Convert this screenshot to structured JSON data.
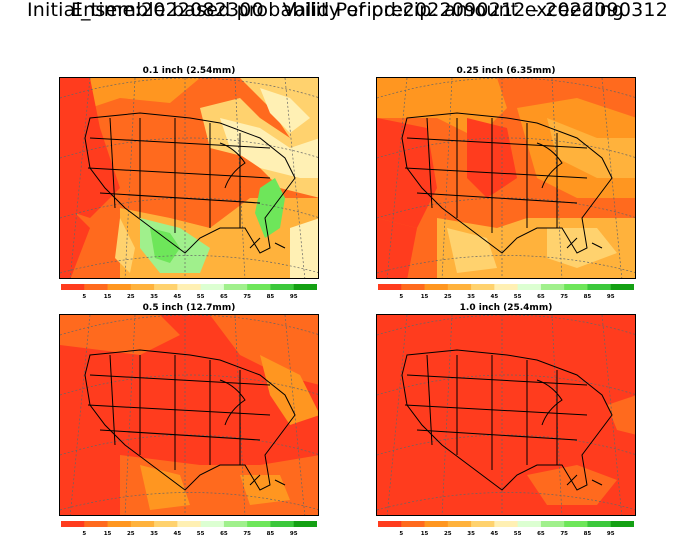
{
  "header": {
    "title_line1": "Initial_time:2022082300   Valid Period:2022090212 - 2022090312",
    "title_line2": "Ensemble based probability of precip. amount exceeding"
  },
  "colorbar": {
    "labels": [
      "5",
      "15",
      "25",
      "35",
      "45",
      "55",
      "65",
      "75",
      "85",
      "95"
    ],
    "colors": [
      "#ff3c1e",
      "#ff6a1e",
      "#ff9620",
      "#ffb23c",
      "#ffd26e",
      "#fff0b4",
      "#dcffd2",
      "#a0f08c",
      "#6ee65a",
      "#3cc83c",
      "#14a014"
    ]
  },
  "panels": [
    {
      "title": "0.1 inch (2.54mm)"
    },
    {
      "title": "0.25 inch (6.35mm)"
    },
    {
      "title": "0.5 inch (12.7mm)"
    },
    {
      "title": "1.0 inch (25.4mm)"
    }
  ]
}
